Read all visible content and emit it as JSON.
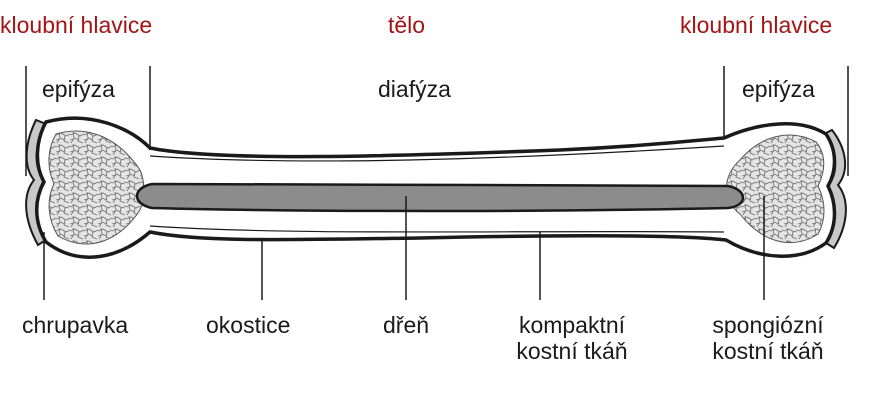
{
  "colors": {
    "accent_red": "#a31515",
    "outline": "#1a1a1a",
    "spongy_fill": "#e4e4e4",
    "marrow_fill": "#8c8c8c",
    "cartilage_fill": "#c8c8c8"
  },
  "top_labels": {
    "left_head": "kloubní hlavice",
    "body": "tělo",
    "right_head": "kloubní hlavice"
  },
  "region_labels": {
    "left_epiphysis": "epifýza",
    "diaphysis": "diafýza",
    "right_epiphysis": "epifýza"
  },
  "bottom_labels": {
    "cartilage": "chrupavka",
    "periosteum": "okostice",
    "marrow": "dřeň",
    "compact_line1": "kompaktní",
    "compact_line2": "kostní tkáň",
    "spongy_line1": "spongiózní",
    "spongy_line2": "kostní tkáň"
  }
}
